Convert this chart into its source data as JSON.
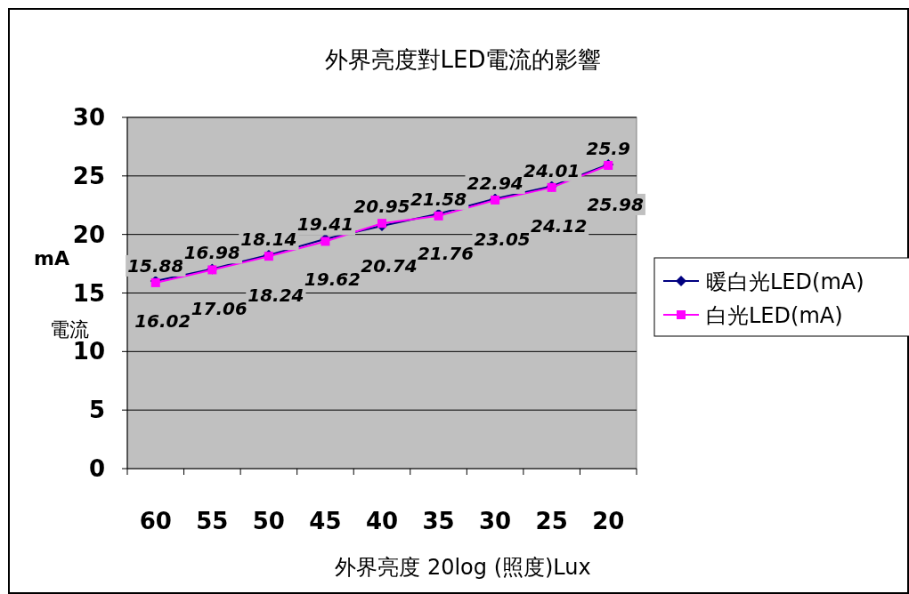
{
  "chart_data": {
    "type": "line",
    "title": "外界亮度對LED電流的影響",
    "xlabel": "外界亮度 20log (照度)Lux",
    "ylabel": "mA 電流",
    "categories": [
      "60",
      "55",
      "50",
      "45",
      "40",
      "35",
      "30",
      "25",
      "20"
    ],
    "series": [
      {
        "name": "暖白光LED(mA)",
        "color": "#000080",
        "marker": "diamond",
        "values": [
          16.02,
          17.06,
          18.24,
          19.62,
          20.74,
          21.76,
          23.05,
          24.12,
          25.98
        ]
      },
      {
        "name": "白光LED(mA)",
        "color": "#ff00ff",
        "marker": "square",
        "values": [
          15.88,
          16.98,
          18.14,
          19.41,
          20.95,
          21.58,
          22.94,
          24.01,
          25.9
        ]
      }
    ],
    "ylim": [
      0,
      30
    ],
    "yticks": [
      0,
      5,
      10,
      15,
      20,
      25,
      30
    ],
    "grid": "y",
    "legend": "right",
    "data_labels": true,
    "line_style": "solid"
  }
}
